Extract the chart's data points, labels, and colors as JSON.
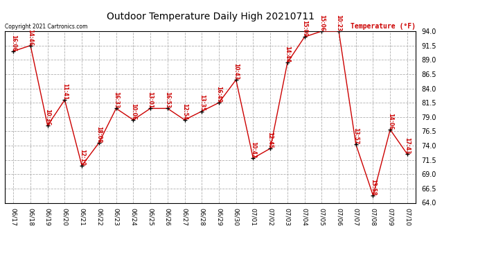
{
  "title": "Outdoor Temperature Daily High 20210711",
  "copyright": "Copyright 2021 Cartronics.com",
  "legend_label": "Temperature (°F)",
  "dates": [
    "06/17",
    "06/18",
    "06/19",
    "06/20",
    "06/21",
    "06/22",
    "06/23",
    "06/24",
    "06/25",
    "06/26",
    "06/27",
    "06/28",
    "06/29",
    "06/30",
    "07/01",
    "07/02",
    "07/03",
    "07/04",
    "07/05",
    "07/06",
    "07/07",
    "07/08",
    "07/09",
    "07/10"
  ],
  "temps": [
    90.5,
    91.5,
    77.5,
    82.0,
    70.5,
    74.5,
    80.5,
    78.5,
    80.5,
    80.5,
    78.5,
    80.0,
    81.5,
    85.5,
    71.8,
    73.5,
    88.5,
    93.0,
    94.0,
    94.0,
    74.2,
    65.3,
    76.8,
    72.5
  ],
  "time_labels": [
    "16:06",
    "14:46",
    "10:36",
    "11:41",
    "12:19",
    "18:08",
    "16:33",
    "10:06",
    "13:01",
    "16:53",
    "12:54",
    "13:35",
    "16:49",
    "10:43",
    "10:42",
    "12:45",
    "14:44",
    "15:09",
    "15:06",
    "10:23",
    "13:57",
    "13:58",
    "14:06",
    "17:43"
  ],
  "ylim_min": 64.0,
  "ylim_max": 94.0,
  "yticks": [
    64.0,
    66.5,
    69.0,
    71.5,
    74.0,
    76.5,
    79.0,
    81.5,
    84.0,
    86.5,
    89.0,
    91.5,
    94.0
  ],
  "line_color": "#cc0000",
  "marker_color": "#000000",
  "label_color": "#cc0000",
  "bg_color": "#ffffff",
  "grid_color": "#b0b0b0",
  "title_color": "#000000",
  "copyright_color": "#000000",
  "legend_color": "#cc0000",
  "fig_width": 6.9,
  "fig_height": 3.75,
  "dpi": 100
}
